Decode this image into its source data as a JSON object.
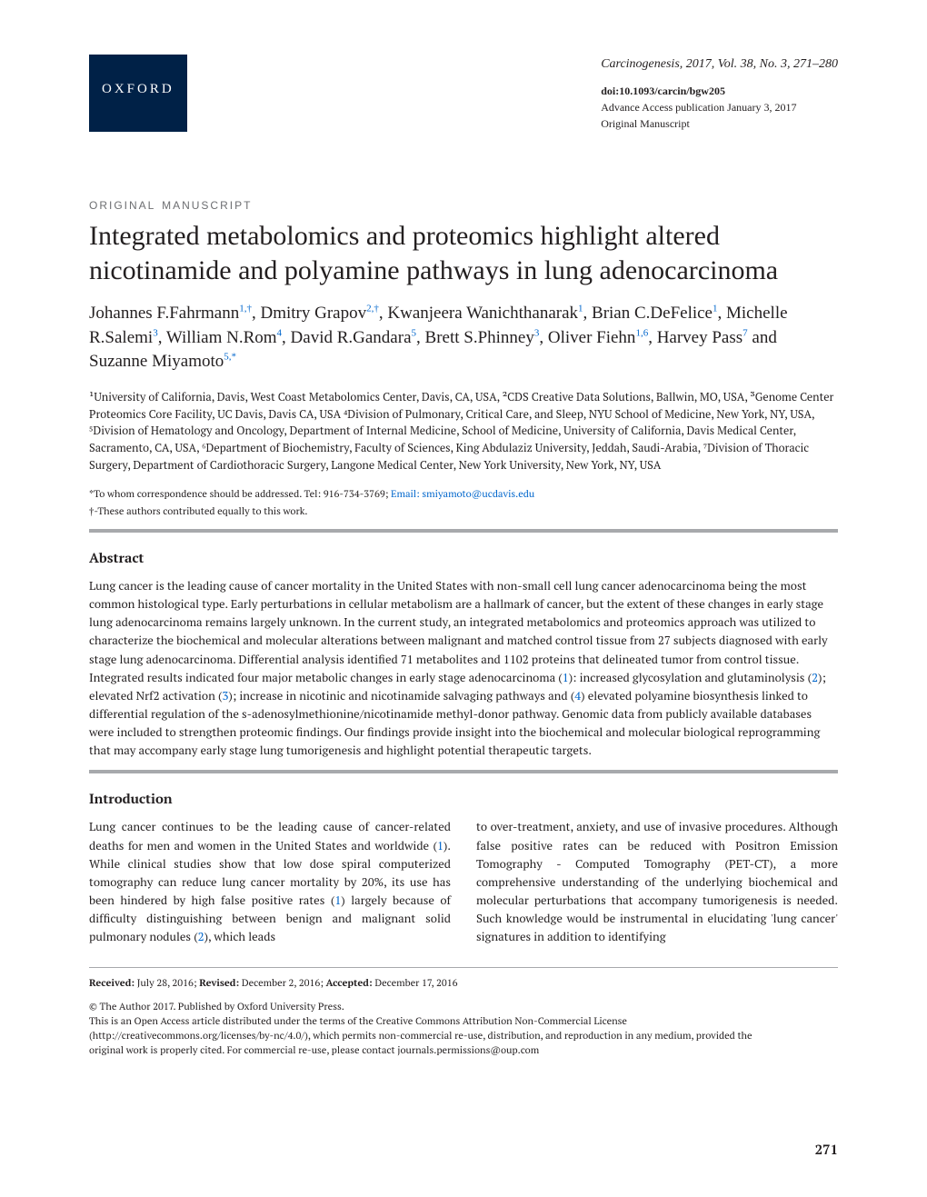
{
  "header": {
    "publisher_badge": "OXFORD",
    "journal_citation": "Carcinogenesis, 2017, Vol. 38, No. 3, 271–280",
    "doi": "doi:10.1093/carcin/bgw205",
    "advance_access": "Advance Access publication January 3, 2017",
    "article_type_small": "Original Manuscript"
  },
  "article": {
    "section_label": "original manuscript",
    "title": "Integrated metabolomics and proteomics highlight altered nicotinamide and polyamine pathways in lung adenocarcinoma",
    "authors_html": "Johannes F.Fahrmann<sup class='affil-link'>1,†</sup>, Dmitry Grapov<sup class='affil-link'>2,†</sup>, Kwanjeera Wanichthanarak<sup class='affil-link'>1</sup>, Brian C.DeFelice<sup class='affil-link'>1</sup>, Michelle R.Salemi<sup class='affil-link'>3</sup>, William N.Rom<sup class='affil-link'>4</sup>, David R.Gandara<sup class='affil-link'>5</sup>, Brett S.Phinney<sup class='affil-link'>3</sup>, Oliver Fiehn<sup class='affil-link'>1,6</sup>, Harvey Pass<sup class='affil-link'>7</sup> and Suzanne Miyamoto<sup class='affil-link'>5,*</sup>",
    "affiliations": "¹University of California, Davis, West Coast Metabolomics Center, Davis, CA, USA, ²CDS Creative Data Solutions, Ballwin, MO, USA, ³Genome Center Proteomics Core Facility, UC Davis, Davis CA, USA ⁴Division of Pulmonary, Critical Care, and Sleep, NYU School of Medicine, New York, NY, USA, ⁵Division of Hematology and Oncology, Department of Internal Medicine, School of Medicine, University of California, Davis Medical Center, Sacramento, CA, USA, ⁶Department of Biochemistry, Faculty of Sciences, King Abdulaziz University, Jeddah, Saudi-Arabia, ⁷Division of Thoracic Surgery, Department of Cardiothoracic Surgery, Langone Medical Center, New York University, New York, NY, USA",
    "correspondence_prefix": "*To whom correspondence should be addressed. Tel: 916-734-3769; ",
    "correspondence_email_label": "Email: ",
    "correspondence_email": "smiyamoto@ucdavis.edu",
    "equal_contrib": "†-These authors contributed equally to this work."
  },
  "abstract": {
    "heading": "Abstract",
    "text_html": "Lung cancer is the leading cause of cancer mortality in the United States with non-small cell lung cancer adenocarcinoma being the most common histological type. Early perturbations in cellular metabolism are a hallmark of cancer, but the extent of these changes in early stage lung adenocarcinoma remains largely unknown. In the current study, an integrated metabolomics and proteomics approach was utilized to characterize the biochemical and molecular alterations between malignant and matched control tissue from 27 subjects diagnosed with early stage lung adenocarcinoma. Differential analysis identified 71 metabolites and 1102 proteins that delineated tumor from control tissue. Integrated results indicated four major metabolic changes in early stage adenocarcinoma (<span class='ref-link'>1</span>): increased glycosylation and glutaminolysis (<span class='ref-link'>2</span>); elevated Nrf2 activation (<span class='ref-link'>3</span>); increase in nicotinic and nicotinamide salvaging pathways and (<span class='ref-link'>4</span>) elevated polyamine biosynthesis linked to differential regulation of the s-adenosylmethionine/nicotinamide methyl-donor pathway. Genomic data from publicly available databases were included to strengthen proteomic findings. Our findings provide insight into the biochemical and molecular biological reprogramming that may accompany early stage lung tumorigenesis and highlight potential therapeutic targets."
  },
  "introduction": {
    "heading": "Introduction",
    "col1_html": "Lung cancer continues to be the leading cause of cancer-related deaths for men and women in the United States and worldwide (<span class='ref-link'>1</span>). While clinical studies show that low dose spiral computerized tomography can reduce lung cancer mortality by 20%, its use has been hindered by high false positive rates (<span class='ref-link'>1</span>) largely because of difficulty distinguishing between benign and malignant solid pulmonary nodules (<span class='ref-link'>2</span>), which leads",
    "col2_html": "to over-treatment, anxiety, and use of invasive procedures. Although false positive rates can be reduced with Positron Emission Tomography - Computed Tomography (PET-CT), a more comprehensive understanding of the underlying biochemical and molecular perturbations that accompany tumorigenesis is needed. Such knowledge would be instrumental in elucidating 'lung cancer' signatures in addition to identifying"
  },
  "footer": {
    "dates_html": "<b>Received:</b> July 28, 2016; <b>Revised:</b> December 2, 2016; <b>Accepted:</b> December 17, 2016",
    "copyright": "© The Author 2017. Published by Oxford University Press.",
    "license": "This is an Open Access article distributed under the terms of the Creative Commons Attribution Non-Commercial License (http://creativecommons.org/licenses/by-nc/4.0/), which permits non-commercial re-use, distribution, and reproduction in any medium, provided the original work is properly cited. For commercial re-use, please contact journals.permissions@oup.com",
    "page_number": "271"
  },
  "colors": {
    "oxford_blue": "#002147",
    "link_blue": "#0066cc",
    "rule_gray": "#a7a9ac",
    "label_gray": "#6d6e71",
    "text": "#231f20"
  },
  "typography": {
    "title_fontsize": 30,
    "authors_fontsize": 19,
    "body_fontsize": 13,
    "affil_fontsize": 12.5,
    "footnote_fontsize": 11
  }
}
